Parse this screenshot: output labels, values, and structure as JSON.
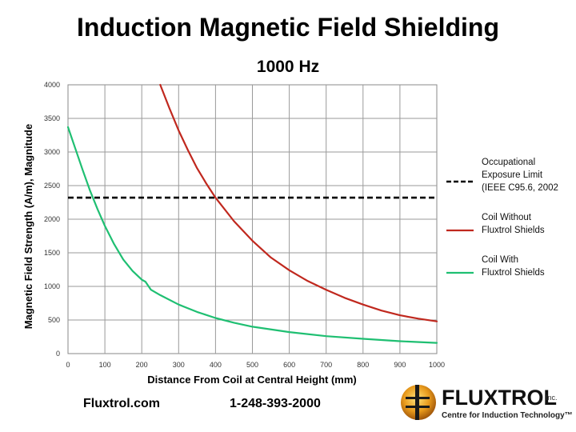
{
  "chart_data": {
    "type": "line",
    "title": "Induction Magnetic Field Shielding",
    "subtitle": "1000 Hz",
    "xlabel": "Distance From Coil at Central Height (mm)",
    "ylabel": "Magnetic Field Strength (A/m), Magnitude",
    "xlim": [
      0,
      1000
    ],
    "ylim": [
      0,
      4000
    ],
    "x_ticks": [
      0,
      100,
      200,
      300,
      400,
      500,
      600,
      700,
      800,
      900,
      1000
    ],
    "y_ticks": [
      0,
      500,
      1000,
      1500,
      2000,
      2500,
      3000,
      3500,
      4000
    ],
    "grid": true,
    "legend_position": "right",
    "series": [
      {
        "name": "Occupational Exposure Limit (IEEE C95.6, 2002",
        "legend_lines": [
          "Occupational",
          "Exposure Limit",
          "(IEEE C95.6, 2002"
        ],
        "color": "#000000",
        "style": "dashed",
        "x": [
          0,
          1000
        ],
        "y": [
          2320,
          2320
        ]
      },
      {
        "name": "Coil Without Fluxtrol Shields",
        "legend_lines": [
          "Coil Without",
          "Fluxtrol Shields"
        ],
        "color": "#c0281e",
        "style": "solid",
        "x": [
          250,
          275,
          300,
          325,
          350,
          375,
          400,
          450,
          500,
          550,
          600,
          650,
          700,
          750,
          800,
          850,
          900,
          950,
          1000
        ],
        "y": [
          4000,
          3650,
          3320,
          3030,
          2760,
          2530,
          2320,
          1970,
          1680,
          1430,
          1240,
          1080,
          950,
          830,
          730,
          640,
          570,
          520,
          480
        ]
      },
      {
        "name": "Coil With Fluxtrol Shields",
        "legend_lines": [
          "Coil With",
          "Fluxtrol Shields"
        ],
        "color": "#1fbf72",
        "style": "solid",
        "x": [
          0,
          20,
          40,
          60,
          80,
          100,
          125,
          150,
          175,
          200,
          210,
          225,
          250,
          300,
          350,
          400,
          450,
          500,
          600,
          700,
          800,
          900,
          1000
        ],
        "y": [
          3370,
          3050,
          2730,
          2420,
          2150,
          1900,
          1630,
          1400,
          1230,
          1100,
          1070,
          950,
          870,
          730,
          620,
          530,
          460,
          400,
          320,
          260,
          220,
          185,
          160
        ]
      }
    ]
  },
  "footer": {
    "website": "Fluxtrol.com",
    "phone": "1-248-393-2000"
  },
  "logo": {
    "name": "FLUXTROL",
    "suffix": "Inc.",
    "tagline": "Centre for Induction Technology™"
  }
}
